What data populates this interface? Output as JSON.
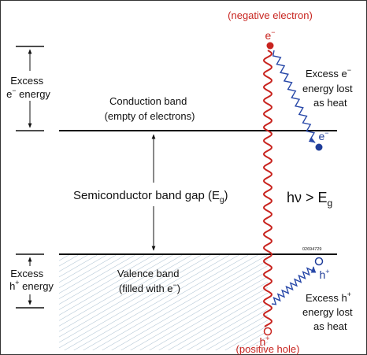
{
  "colors": {
    "photon": "#c8241f",
    "electron_path": "#2848a8",
    "electron_dot": "#1f3d99",
    "hatch": "#a9bfd0",
    "line": "#111111",
    "border": "#333333"
  },
  "top_label": "(negative electron)",
  "bottom_label": "(positive hole)",
  "electron_symbol": {
    "base": "e",
    "sup": "−"
  },
  "hole_symbol": {
    "base": "h",
    "sup": "+"
  },
  "conduction_band": {
    "line1": "Conduction band",
    "line2": "(empty of electrons)"
  },
  "valence_band": {
    "line1": "Valence band",
    "line2a": "(filled with e",
    "line2sup": "−",
    "line2b": ")"
  },
  "band_gap": {
    "text": "Semiconductor band gap (E",
    "sub": "g",
    "close": ")"
  },
  "photon_eq": {
    "h_nu": "hν > E",
    "sub": "g"
  },
  "excess_e_energy": {
    "line1": "Excess",
    "line2a": "e",
    "line2sup": "−",
    "line2b": " energy"
  },
  "excess_h_energy": {
    "line1": "Excess",
    "line2a": "h",
    "line2sup": "+",
    "line2b": " energy"
  },
  "excess_e_lost": {
    "line1a": "Excess e",
    "line1sup": "−",
    "line2": "energy lost",
    "line3": "as heat"
  },
  "excess_h_lost": {
    "line1a": "Excess h",
    "line1sup": "+",
    "line2": "energy lost",
    "line3": "as heat"
  },
  "figure_id": "02694729"
}
